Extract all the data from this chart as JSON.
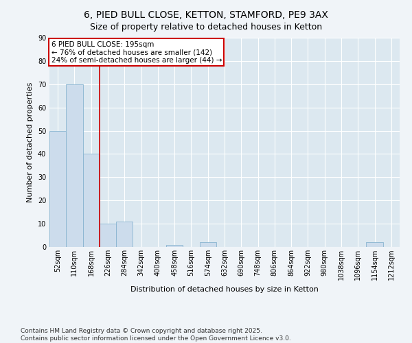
{
  "title": "6, PIED BULL CLOSE, KETTON, STAMFORD, PE9 3AX",
  "subtitle": "Size of property relative to detached houses in Ketton",
  "xlabel": "Distribution of detached houses by size in Ketton",
  "ylabel": "Number of detached properties",
  "bins": [
    "52sqm",
    "110sqm",
    "168sqm",
    "226sqm",
    "284sqm",
    "342sqm",
    "400sqm",
    "458sqm",
    "516sqm",
    "574sqm",
    "632sqm",
    "690sqm",
    "748sqm",
    "806sqm",
    "864sqm",
    "922sqm",
    "980sqm",
    "1038sqm",
    "1096sqm",
    "1154sqm",
    "1212sqm"
  ],
  "values": [
    50,
    70,
    40,
    10,
    11,
    0,
    0,
    1,
    0,
    2,
    0,
    0,
    0,
    0,
    0,
    0,
    0,
    0,
    0,
    2,
    0
  ],
  "bar_color": "#ccdcec",
  "bar_edge_color": "#88b4d0",
  "red_line_bin_index": 2,
  "annotation_text": "6 PIED BULL CLOSE: 195sqm\n← 76% of detached houses are smaller (142)\n24% of semi-detached houses are larger (44) →",
  "annotation_box_color": "#ffffff",
  "annotation_border_color": "#cc0000",
  "ylim": [
    0,
    90
  ],
  "yticks": [
    0,
    10,
    20,
    30,
    40,
    50,
    60,
    70,
    80,
    90
  ],
  "footer": "Contains HM Land Registry data © Crown copyright and database right 2025.\nContains public sector information licensed under the Open Government Licence v3.0.",
  "bg_color": "#dce8f0",
  "grid_color": "#ffffff",
  "fig_bg_color": "#f0f4f8",
  "title_fontsize": 10,
  "subtitle_fontsize": 9,
  "axis_label_fontsize": 8,
  "tick_fontsize": 7,
  "annotation_fontsize": 7.5,
  "footer_fontsize": 6.5
}
